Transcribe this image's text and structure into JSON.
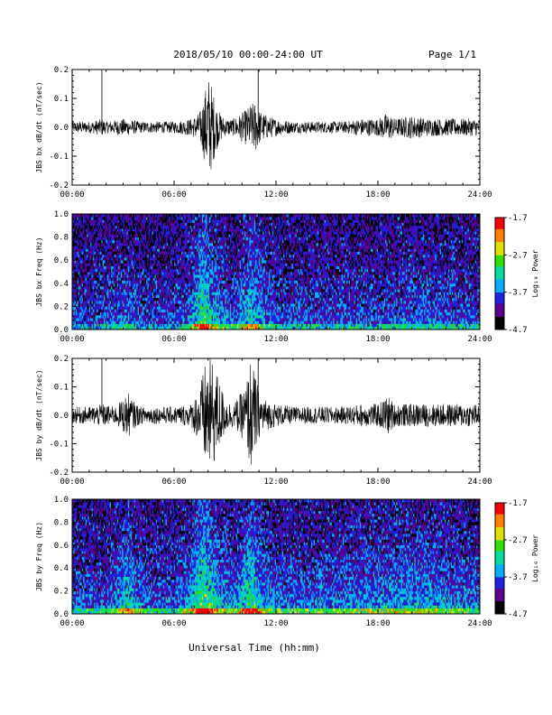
{
  "header": {
    "title": "2018/05/10   00:00-24:00 UT",
    "page": "Page 1/1"
  },
  "footer": {
    "xlabel": "Universal Time (hh:mm)"
  },
  "colorbar": {
    "label": "Log₁₀ Power",
    "ticks": [
      "-1.7",
      "-2.7",
      "-3.7",
      "-4.7"
    ],
    "range": [
      -4.7,
      -1.7
    ],
    "colors": [
      "#000000",
      "#5a0090",
      "#2020e0",
      "#00b0ff",
      "#00e0a0",
      "#30e000",
      "#e0e000",
      "#ff8000",
      "#ff0000"
    ]
  },
  "chart_data": [
    {
      "type": "line",
      "id": "bx_wave",
      "ylabel": "JBS bx dB/dt (nT/sec)",
      "xlim": [
        0,
        24
      ],
      "ylim": [
        -0.2,
        0.2
      ],
      "xticks": [
        "00:00",
        "06:00",
        "12:00",
        "18:00",
        "24:00"
      ],
      "yticks": [
        "0.2",
        "0.1",
        "0.0",
        "-0.1",
        "-0.2"
      ],
      "series": [
        {
          "x": [
            0,
            1,
            1.8,
            2,
            3,
            4,
            5,
            6,
            7,
            7.5,
            7.8,
            8.0,
            8.2,
            8.4,
            8.6,
            9,
            9.5,
            10.2,
            10.5,
            10.8,
            11,
            11.5,
            12,
            13,
            14,
            15,
            16,
            17,
            18,
            18.6,
            19,
            20,
            21,
            22,
            23,
            24
          ],
          "amp": [
            0.02,
            0.02,
            0.03,
            0.02,
            0.03,
            0.02,
            0.02,
            0.02,
            0.03,
            0.05,
            0.12,
            0.19,
            0.15,
            0.1,
            0.06,
            0.03,
            0.03,
            0.06,
            0.08,
            0.09,
            0.06,
            0.04,
            0.03,
            0.02,
            0.02,
            0.02,
            0.02,
            0.03,
            0.03,
            0.05,
            0.03,
            0.04,
            0.03,
            0.03,
            0.03,
            0.03
          ]
        }
      ]
    },
    {
      "type": "heatmap",
      "id": "bx_spec",
      "ylabel": "JBS bx Freq (Hz)",
      "xlim": [
        0,
        24
      ],
      "ylim": [
        0,
        1.0
      ],
      "xticks": [
        "00:00",
        "06:00",
        "12:00",
        "18:00",
        "24:00"
      ],
      "yticks": [
        "1.0",
        "0.8",
        "0.6",
        "0.4",
        "0.2",
        "0.0"
      ],
      "activity": {
        "x": [
          0,
          2,
          3.2,
          4,
          6,
          7.0,
          7.6,
          8.0,
          8.4,
          9.5,
          10.5,
          11.2,
          12,
          14,
          16,
          18,
          20,
          22,
          24
        ],
        "level": [
          0.25,
          0.25,
          0.4,
          0.25,
          0.25,
          0.45,
          0.85,
          0.75,
          0.55,
          0.35,
          0.7,
          0.45,
          0.3,
          0.3,
          0.3,
          0.3,
          0.35,
          0.35,
          0.3
        ]
      }
    },
    {
      "type": "line",
      "id": "by_wave",
      "ylabel": "JBS by dB/dt (nT/sec)",
      "xlim": [
        0,
        24
      ],
      "ylim": [
        -0.2,
        0.2
      ],
      "xticks": [
        "00:00",
        "06:00",
        "12:00",
        "18:00",
        "24:00"
      ],
      "yticks": [
        "0.2",
        "0.1",
        "0.0",
        "-0.1",
        "-0.2"
      ],
      "series": [
        {
          "x": [
            0,
            1,
            1.8,
            2.5,
            3.0,
            3.3,
            3.6,
            4,
            5,
            6,
            7,
            7.5,
            7.9,
            8.2,
            8.6,
            9,
            9.5,
            10.2,
            10.5,
            10.8,
            11,
            11.5,
            12,
            13,
            14,
            15,
            16,
            17,
            18,
            18.6,
            19,
            20,
            21,
            22,
            23,
            24
          ],
          "amp": [
            0.03,
            0.03,
            0.04,
            0.03,
            0.06,
            0.08,
            0.05,
            0.03,
            0.03,
            0.03,
            0.04,
            0.1,
            0.2,
            0.2,
            0.14,
            0.06,
            0.04,
            0.1,
            0.2,
            0.14,
            0.08,
            0.05,
            0.04,
            0.03,
            0.03,
            0.03,
            0.03,
            0.04,
            0.04,
            0.07,
            0.04,
            0.04,
            0.04,
            0.04,
            0.04,
            0.04
          ]
        }
      ]
    },
    {
      "type": "heatmap",
      "id": "by_spec",
      "ylabel": "JBS by Freq (Hz)",
      "xlim": [
        0,
        24
      ],
      "ylim": [
        0,
        1.0
      ],
      "xticks": [
        "00:00",
        "06:00",
        "12:00",
        "18:00",
        "24:00"
      ],
      "yticks": [
        "1.0",
        "0.8",
        "0.6",
        "0.4",
        "0.2",
        "0.0"
      ],
      "activity": {
        "x": [
          0,
          2,
          3.0,
          3.3,
          3.7,
          4.5,
          6,
          7.0,
          7.6,
          8.0,
          8.6,
          9.5,
          10.5,
          11.2,
          12,
          14,
          16,
          18,
          19.5,
          21,
          22,
          24
        ],
        "level": [
          0.35,
          0.35,
          0.55,
          0.7,
          0.5,
          0.35,
          0.35,
          0.55,
          0.95,
          0.85,
          0.6,
          0.45,
          0.85,
          0.55,
          0.4,
          0.4,
          0.45,
          0.5,
          0.55,
          0.55,
          0.45,
          0.4
        ]
      }
    }
  ]
}
